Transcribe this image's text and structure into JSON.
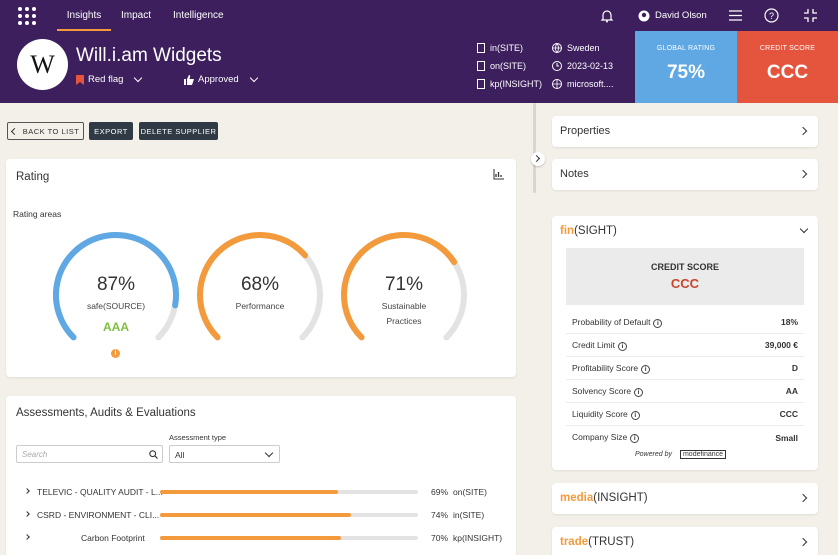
{
  "nav": {
    "tabs": [
      "Insights",
      "Impact",
      "Intelligence"
    ],
    "user": "David Olson"
  },
  "header": {
    "logo_letter": "W",
    "company": "Will.i.am Widgets",
    "flag": "Red flag",
    "approval": "Approved",
    "links": [
      "in(SITE)",
      "on(SITE)",
      "kp(INSIGHT)"
    ],
    "country": "Sweden",
    "date": "2023-02-13",
    "website": "microsoft....",
    "global_rating_label": "GLOBAL RATING",
    "global_rating": "75%",
    "credit_score_label": "CREDIT SCORE",
    "credit_score": "CCC"
  },
  "actions": {
    "back": "BACK TO LIST",
    "export": "EXPORT",
    "delete": "DELETE SUPPLIER"
  },
  "rating": {
    "title": "Rating",
    "areas_label": "Rating areas",
    "rings": [
      {
        "value": "87%",
        "fraction": 0.87,
        "label": "safe(SOURCE)",
        "grade": "AAA",
        "color": "#5fa8e3"
      },
      {
        "value": "68%",
        "fraction": 0.68,
        "label": "Performance",
        "color": "#f39a3d"
      },
      {
        "value": "71%",
        "fraction": 0.71,
        "label": "Sustainable Practices",
        "color": "#f39a3d"
      }
    ]
  },
  "assessments": {
    "title": "Assessments, Audits & Evaluations",
    "search_placeholder": "Search",
    "type_label": "Assessment type",
    "type_value": "All",
    "rows": [
      {
        "name": "TELEVIC - QUALITY AUDIT - L...",
        "pct": "69%",
        "fraction": 0.69,
        "source": "on(SITE)"
      },
      {
        "name": "CSRD - ENVIRONMENT - CLI...",
        "pct": "74%",
        "fraction": 0.74,
        "source": "in(SITE)"
      },
      {
        "name": "Carbon Footprint",
        "pct": "70%",
        "fraction": 0.7,
        "source": "kp(INSIGHT)"
      }
    ]
  },
  "side": {
    "properties": "Properties",
    "notes": "Notes",
    "fin_prefix": "fin",
    "fin_suffix": "(SIGHT)",
    "credit_label": "CREDIT SCORE",
    "credit_value": "CCC",
    "credit_rows": [
      {
        "label": "Probability of Default",
        "value": "18%"
      },
      {
        "label": "Credit Limit",
        "value": "39,000 €"
      },
      {
        "label": "Profitability Score",
        "value": "D"
      },
      {
        "label": "Solvency Score",
        "value": "AA"
      },
      {
        "label": "Liquidity Score",
        "value": "CCC"
      },
      {
        "label": "Company Size",
        "value": "Small"
      }
    ],
    "powered_by": "Powered by",
    "powered_brand": "modefinance",
    "media_prefix": "media",
    "media_suffix": "(INSIGHT)",
    "trade_prefix": "trade",
    "trade_suffix": "(TRUST)"
  }
}
